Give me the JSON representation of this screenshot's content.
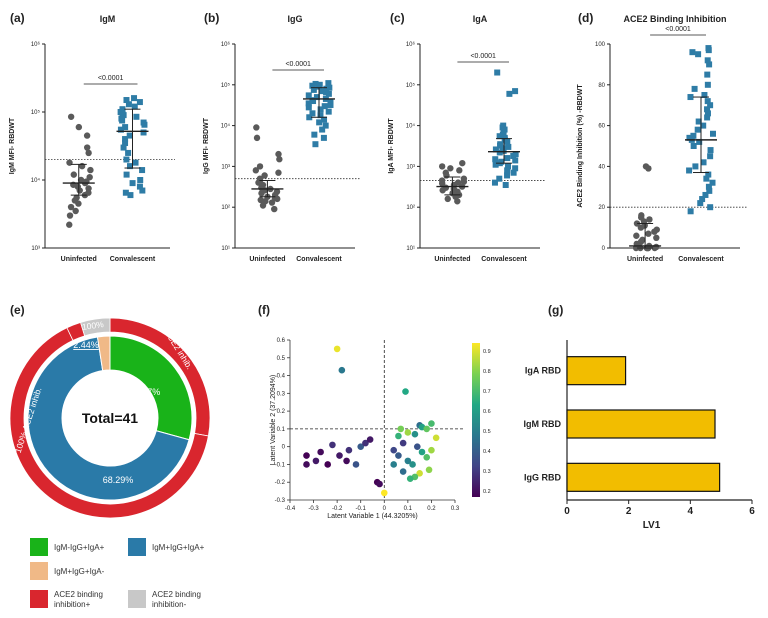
{
  "panels": {
    "a": "(a)",
    "b": "(b)",
    "c": "(c)",
    "d": "(d)",
    "e": "(e)",
    "f": "(f)",
    "g": "(g)"
  },
  "colors": {
    "uninfected": "#5a5a5a",
    "convalescent": "#2e7ca6",
    "green": "#19b319",
    "blue": "#2a7aa8",
    "peach": "#f0b987",
    "red": "#d9262e",
    "gray": "#c8c8c8",
    "bar": "#f2bd00"
  },
  "chart_data": [
    {
      "type": "scatter",
      "title": "IgM",
      "ylabel": "IgM MFI- RBDWT",
      "yscale": "log",
      "ylim": [
        1000,
        1000000
      ],
      "yticks": [
        "10³",
        "10⁴",
        "10⁵",
        "10⁶"
      ],
      "categories": [
        "Uninfected",
        "Convalescent"
      ],
      "cutoff": 20000,
      "significance": "<0.0001",
      "series": [
        {
          "values": [
            85000,
            60000,
            45000,
            30000,
            25000,
            18000,
            16000,
            14000,
            12000,
            11000,
            10000,
            9500,
            9000,
            8500,
            8000,
            7500,
            7000,
            6500,
            6000,
            5500,
            5000,
            4500,
            4000,
            3500,
            3000,
            2200
          ],
          "median": 9000,
          "q1": 6000,
          "q3": 17000
        },
        {
          "values": [
            160000,
            150000,
            140000,
            130000,
            120000,
            110000,
            100000,
            95000,
            90000,
            85000,
            80000,
            75000,
            70000,
            65000,
            60000,
            55000,
            50000,
            45000,
            40000,
            35000,
            30000,
            25000,
            20000,
            18000,
            16000,
            14000,
            12000,
            10000,
            9000,
            8000,
            7000,
            6500,
            6000
          ],
          "median": 52000,
          "q1": 15000,
          "q3": 110000
        }
      ]
    },
    {
      "type": "scatter",
      "title": "IgG",
      "ylabel": "IgG MFI- RBDWT",
      "yscale": "log",
      "ylim": [
        10,
        1000000
      ],
      "yticks": [
        "10¹",
        "10²",
        "10³",
        "10⁴",
        "10⁵",
        "10⁶"
      ],
      "categories": [
        "Uninfected",
        "Convalescent"
      ],
      "cutoff": 500,
      "significance": "<0.0001",
      "series": [
        {
          "values": [
            9000,
            5000,
            2000,
            1500,
            1000,
            800,
            700,
            600,
            500,
            450,
            400,
            350,
            300,
            280,
            260,
            240,
            220,
            200,
            180,
            170,
            160,
            150,
            140,
            130,
            110,
            90
          ],
          "median": 280,
          "q1": 180,
          "q3": 450
        },
        {
          "values": [
            110000,
            105000,
            100000,
            95000,
            90000,
            85000,
            80000,
            75000,
            70000,
            65000,
            60000,
            55000,
            50000,
            45000,
            42000,
            40000,
            38000,
            35000,
            32000,
            30000,
            28000,
            25000,
            22000,
            20000,
            18000,
            16000,
            14000,
            12000,
            10000,
            8000,
            6000,
            5000,
            3500
          ],
          "median": 45000,
          "q1": 16000,
          "q3": 85000
        }
      ]
    },
    {
      "type": "scatter",
      "title": "IgA",
      "ylabel": "IgA MFI- RBDWT",
      "yscale": "log",
      "ylim": [
        10,
        1000000
      ],
      "yticks": [
        "10¹",
        "10²",
        "10³",
        "10⁴",
        "10⁵",
        "10⁶"
      ],
      "categories": [
        "Uninfected",
        "Convalescent"
      ],
      "cutoff": 450,
      "significance": "<0.0001",
      "series": [
        {
          "values": [
            1200,
            1000,
            900,
            800,
            700,
            600,
            500,
            450,
            420,
            400,
            380,
            350,
            320,
            300,
            280,
            260,
            240,
            220,
            200,
            180,
            160,
            140
          ],
          "median": 320,
          "q1": 200,
          "q3": 550
        },
        {
          "values": [
            200000,
            70000,
            60000,
            10000,
            9000,
            8000,
            7000,
            6000,
            5500,
            5000,
            4500,
            4000,
            3500,
            3200,
            3000,
            2800,
            2600,
            2400,
            2200,
            2000,
            1800,
            1600,
            1500,
            1400,
            1300,
            1200,
            1100,
            1000,
            900,
            800,
            700,
            600,
            500,
            400,
            350
          ],
          "median": 2300,
          "q1": 1200,
          "q3": 4800
        }
      ]
    },
    {
      "type": "scatter",
      "title": "ACE2 Binding Inhibition",
      "ylabel": "ACE2 Binding Inhibition (%) -RBDWT",
      "ylim": [
        0,
        100
      ],
      "yticks": [
        "0",
        "20",
        "40",
        "60",
        "80",
        "100"
      ],
      "categories": [
        "Uninfected",
        "Convalescent"
      ],
      "cutoff": 20,
      "significance": "<0.0001",
      "series": [
        {
          "values": [
            40,
            39,
            16,
            15,
            14,
            13,
            12,
            11,
            10,
            9,
            8,
            7,
            6,
            5,
            4,
            3,
            2,
            1,
            0.5,
            0,
            0,
            0,
            0,
            0,
            0,
            0
          ],
          "median": 1,
          "q1": 0,
          "q3": 12
        },
        {
          "values": [
            98,
            97,
            96,
            95,
            92,
            90,
            85,
            80,
            78,
            75,
            74,
            72,
            70,
            68,
            66,
            64,
            62,
            60,
            58,
            56,
            55,
            54,
            53,
            52,
            50,
            48,
            45,
            42,
            40,
            38,
            36,
            34,
            32,
            30,
            28,
            26,
            24,
            22,
            20,
            18
          ],
          "median": 53,
          "q1": 37,
          "q3": 74
        }
      ]
    },
    {
      "type": "pie",
      "center_label": "Total=41",
      "inner": [
        {
          "label": "29.27%",
          "value": 29.27,
          "color": "green"
        },
        {
          "label": "68.29%",
          "value": 68.29,
          "color": "blue"
        },
        {
          "label": "2.44%",
          "value": 2.44,
          "color": "peach"
        }
      ],
      "outer": [
        {
          "label": "83.33% ACE2 inhib.",
          "value": 29.27,
          "color": "red"
        },
        {
          "label": "100% ACE2 inhib.",
          "value": 68.29,
          "color": "red"
        },
        {
          "label": "100%",
          "value": 2.44,
          "color": "red"
        }
      ],
      "outer_gray": {
        "value": 5
      },
      "legend": [
        {
          "text": "IgM-IgG+IgA+",
          "color": "green"
        },
        {
          "text": "IgM+IgG+IgA+",
          "color": "blue"
        },
        {
          "text": "IgM+IgG+IgA-",
          "color": "peach"
        },
        {
          "text": "ACE2 binding inhibition+",
          "line1": "ACE2 binding",
          "line2": "inhibition+",
          "color": "red"
        },
        {
          "text": "ACE2 binding inhibition-",
          "line1": "ACE2 binding",
          "line2": "inhibition-",
          "color": "gray"
        }
      ]
    },
    {
      "type": "scatter",
      "xlabel": "Latent Variable 1 (44.3205%)",
      "ylabel": "Latent Variable 2 (37.2094%)",
      "xlim": [
        -0.4,
        0.3
      ],
      "ylim": [
        -0.3,
        0.6
      ],
      "xticks": [
        "-0.4",
        "-0.3",
        "-0.2",
        "-0.1",
        "0",
        "0.1",
        "0.2",
        "0.3"
      ],
      "yticks": [
        "-0.3",
        "-0.2",
        "-0.1",
        "0",
        "0.1",
        "0.2",
        "0.3",
        "0.4",
        "0.5",
        "0.6"
      ],
      "colorbar": {
        "min": 0.2,
        "max": 0.9,
        "ticks": [
          "0.9",
          "0.8",
          "0.7",
          "0.6",
          "0.5",
          "0.4",
          "0.3",
          "0.2"
        ]
      },
      "points": [
        [
          -0.2,
          0.55,
          0.88
        ],
        [
          -0.18,
          0.43,
          0.48
        ],
        [
          -0.33,
          -0.05,
          0.2
        ],
        [
          -0.33,
          -0.1,
          0.22
        ],
        [
          -0.29,
          -0.08,
          0.25
        ],
        [
          -0.27,
          -0.03,
          0.22
        ],
        [
          -0.24,
          -0.1,
          0.2
        ],
        [
          -0.22,
          0.01,
          0.3
        ],
        [
          -0.19,
          -0.05,
          0.25
        ],
        [
          -0.16,
          -0.08,
          0.22
        ],
        [
          -0.15,
          -0.02,
          0.3
        ],
        [
          -0.12,
          -0.1,
          0.38
        ],
        [
          -0.1,
          0.0,
          0.4
        ],
        [
          -0.08,
          0.02,
          0.3
        ],
        [
          -0.06,
          0.04,
          0.25
        ],
        [
          -0.03,
          -0.2,
          0.2
        ],
        [
          -0.02,
          -0.21,
          0.22
        ],
        [
          0.0,
          -0.26,
          0.9
        ],
        [
          0.09,
          0.31,
          0.62
        ],
        [
          0.07,
          0.1,
          0.75
        ],
        [
          0.06,
          0.06,
          0.65
        ],
        [
          0.1,
          0.08,
          0.8
        ],
        [
          0.13,
          0.07,
          0.55
        ],
        [
          0.15,
          0.12,
          0.45
        ],
        [
          0.16,
          0.11,
          0.6
        ],
        [
          0.18,
          0.1,
          0.72
        ],
        [
          0.2,
          0.13,
          0.68
        ],
        [
          0.04,
          -0.02,
          0.35
        ],
        [
          0.06,
          -0.05,
          0.4
        ],
        [
          0.08,
          0.02,
          0.32
        ],
        [
          0.1,
          -0.08,
          0.5
        ],
        [
          0.12,
          -0.1,
          0.55
        ],
        [
          0.14,
          0.0,
          0.38
        ],
        [
          0.16,
          -0.03,
          0.6
        ],
        [
          0.18,
          -0.06,
          0.7
        ],
        [
          0.2,
          -0.02,
          0.8
        ],
        [
          0.22,
          0.05,
          0.85
        ],
        [
          0.19,
          -0.13,
          0.78
        ],
        [
          0.15,
          -0.15,
          0.85
        ],
        [
          0.13,
          -0.17,
          0.7
        ],
        [
          0.08,
          -0.14,
          0.45
        ],
        [
          0.04,
          -0.1,
          0.5
        ],
        [
          0.11,
          -0.18,
          0.65
        ]
      ]
    },
    {
      "type": "bar",
      "orientation": "horizontal",
      "categories": [
        "IgA RBD",
        "IgM RBD",
        "IgG RBD"
      ],
      "values": [
        1.9,
        4.8,
        4.95
      ],
      "xlabel": "LV1",
      "xlim": [
        0,
        6
      ],
      "xticks": [
        "0",
        "2",
        "4",
        "6"
      ]
    }
  ]
}
